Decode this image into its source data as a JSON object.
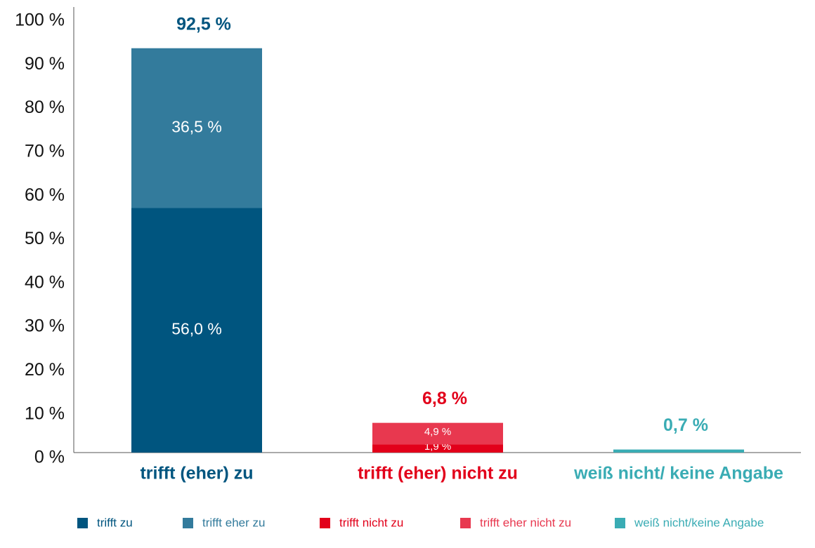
{
  "chart_data": {
    "type": "stacked_bar",
    "categories": [
      "trifft (eher) zu",
      "trifft (eher) nicht zu",
      "weiß nicht/ keine Angabe"
    ],
    "category_colors": [
      "#00557f",
      "#e2001a",
      "#3aacb4"
    ],
    "series": [
      {
        "name": "trifft zu",
        "color": "#00557f",
        "values": [
          56.0,
          null,
          null
        ],
        "value_labels": [
          "56,0 %",
          null,
          null
        ]
      },
      {
        "name": "trifft eher zu",
        "color": "#337b9c",
        "values": [
          36.5,
          null,
          null
        ],
        "value_labels": [
          "36,5 %",
          null,
          null
        ]
      },
      {
        "name": "trifft nicht zu",
        "color": "#e2001a",
        "values": [
          null,
          1.9,
          null
        ],
        "value_labels": [
          null,
          "1,9 %",
          null
        ]
      },
      {
        "name": "trifft eher nicht zu",
        "color": "#e8384f",
        "values": [
          null,
          4.9,
          null
        ],
        "value_labels": [
          null,
          "4,9 %",
          null
        ]
      },
      {
        "name": "weiß nicht/keine Angabe",
        "color": "#3aacb4",
        "values": [
          null,
          null,
          0.7
        ],
        "value_labels": [
          null,
          null,
          null
        ]
      }
    ],
    "totals": [
      92.5,
      6.8,
      0.7
    ],
    "total_labels": [
      "92,5 %",
      "6,8 %",
      "0,7 %"
    ],
    "ylim": [
      0,
      100
    ],
    "yticks": [
      {
        "value": 0,
        "label": "0 %"
      },
      {
        "value": 10,
        "label": "10 %"
      },
      {
        "value": 20,
        "label": "20 %"
      },
      {
        "value": 30,
        "label": "30 %"
      },
      {
        "value": 40,
        "label": "40 %"
      },
      {
        "value": 50,
        "label": "50 %"
      },
      {
        "value": 60,
        "label": "60 %"
      },
      {
        "value": 70,
        "label": "70 %"
      },
      {
        "value": 80,
        "label": "80 %"
      },
      {
        "value": 90,
        "label": "90 %"
      },
      {
        "value": 100,
        "label": "100 %"
      }
    ],
    "grid": false,
    "legend": "bottom"
  }
}
